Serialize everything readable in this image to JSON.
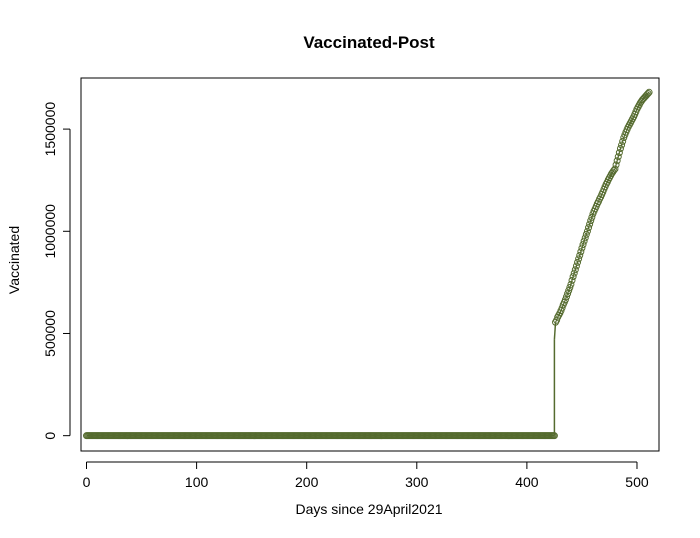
{
  "chart_data": {
    "type": "line",
    "title": "Vaccinated-Post",
    "xlabel": "Days since 29April2021",
    "ylabel": "Vaccinated",
    "xlim": [
      -5,
      520
    ],
    "ylim": [
      -75000,
      1750000
    ],
    "xticks": [
      0,
      100,
      200,
      300,
      400,
      500
    ],
    "yticks": [
      0,
      500000,
      1000000,
      1500000
    ],
    "ytick_labels": [
      "0",
      "500000",
      "1000000",
      "1500000"
    ],
    "grid": false,
    "legend": "none",
    "series": [
      {
        "color": "#556b2f",
        "marker": "open-circle",
        "segments": [
          {
            "x_start": 0,
            "x_end": 425,
            "y": 0
          }
        ],
        "points": [
          [
            426,
            555000
          ],
          [
            427,
            565000
          ],
          [
            428,
            580000
          ],
          [
            429,
            590000
          ],
          [
            430,
            600000
          ],
          [
            431,
            612000
          ],
          [
            432,
            625000
          ],
          [
            433,
            640000
          ],
          [
            434,
            652000
          ],
          [
            435,
            665000
          ],
          [
            436,
            680000
          ],
          [
            437,
            695000
          ],
          [
            438,
            710000
          ],
          [
            439,
            725000
          ],
          [
            440,
            740000
          ],
          [
            441,
            760000
          ],
          [
            442,
            778000
          ],
          [
            443,
            795000
          ],
          [
            444,
            812000
          ],
          [
            445,
            830000
          ],
          [
            446,
            848000
          ],
          [
            447,
            865000
          ],
          [
            448,
            882000
          ],
          [
            449,
            900000
          ],
          [
            450,
            918000
          ],
          [
            451,
            935000
          ],
          [
            452,
            952000
          ],
          [
            453,
            968000
          ],
          [
            454,
            985000
          ],
          [
            455,
            1000000
          ],
          [
            456,
            1018000
          ],
          [
            457,
            1035000
          ],
          [
            458,
            1052000
          ],
          [
            459,
            1068000
          ],
          [
            460,
            1085000
          ],
          [
            461,
            1098000
          ],
          [
            462,
            1110000
          ],
          [
            463,
            1122000
          ],
          [
            464,
            1135000
          ],
          [
            465,
            1145000
          ],
          [
            466,
            1158000
          ],
          [
            467,
            1168000
          ],
          [
            468,
            1180000
          ],
          [
            469,
            1192000
          ],
          [
            470,
            1205000
          ],
          [
            471,
            1218000
          ],
          [
            472,
            1230000
          ],
          [
            473,
            1240000
          ],
          [
            474,
            1252000
          ],
          [
            475,
            1262000
          ],
          [
            476,
            1272000
          ],
          [
            477,
            1282000
          ],
          [
            478,
            1290000
          ],
          [
            479,
            1298000
          ],
          [
            480,
            1305000
          ],
          [
            481,
            1325000
          ],
          [
            482,
            1345000
          ],
          [
            483,
            1365000
          ],
          [
            484,
            1385000
          ],
          [
            485,
            1405000
          ],
          [
            486,
            1422000
          ],
          [
            487,
            1440000
          ],
          [
            488,
            1458000
          ],
          [
            489,
            1472000
          ],
          [
            490,
            1485000
          ],
          [
            491,
            1498000
          ],
          [
            492,
            1510000
          ],
          [
            493,
            1520000
          ],
          [
            494,
            1530000
          ],
          [
            495,
            1540000
          ],
          [
            496,
            1550000
          ],
          [
            497,
            1560000
          ],
          [
            498,
            1572000
          ],
          [
            499,
            1585000
          ],
          [
            500,
            1598000
          ],
          [
            501,
            1608000
          ],
          [
            502,
            1618000
          ],
          [
            503,
            1628000
          ],
          [
            504,
            1636000
          ],
          [
            505,
            1644000
          ],
          [
            506,
            1650000
          ],
          [
            507,
            1656000
          ],
          [
            508,
            1662000
          ],
          [
            509,
            1668000
          ],
          [
            510,
            1674000
          ],
          [
            511,
            1680000
          ]
        ],
        "jump": {
          "x": 425,
          "y_from": 0,
          "y_to": 470000
        }
      }
    ]
  }
}
